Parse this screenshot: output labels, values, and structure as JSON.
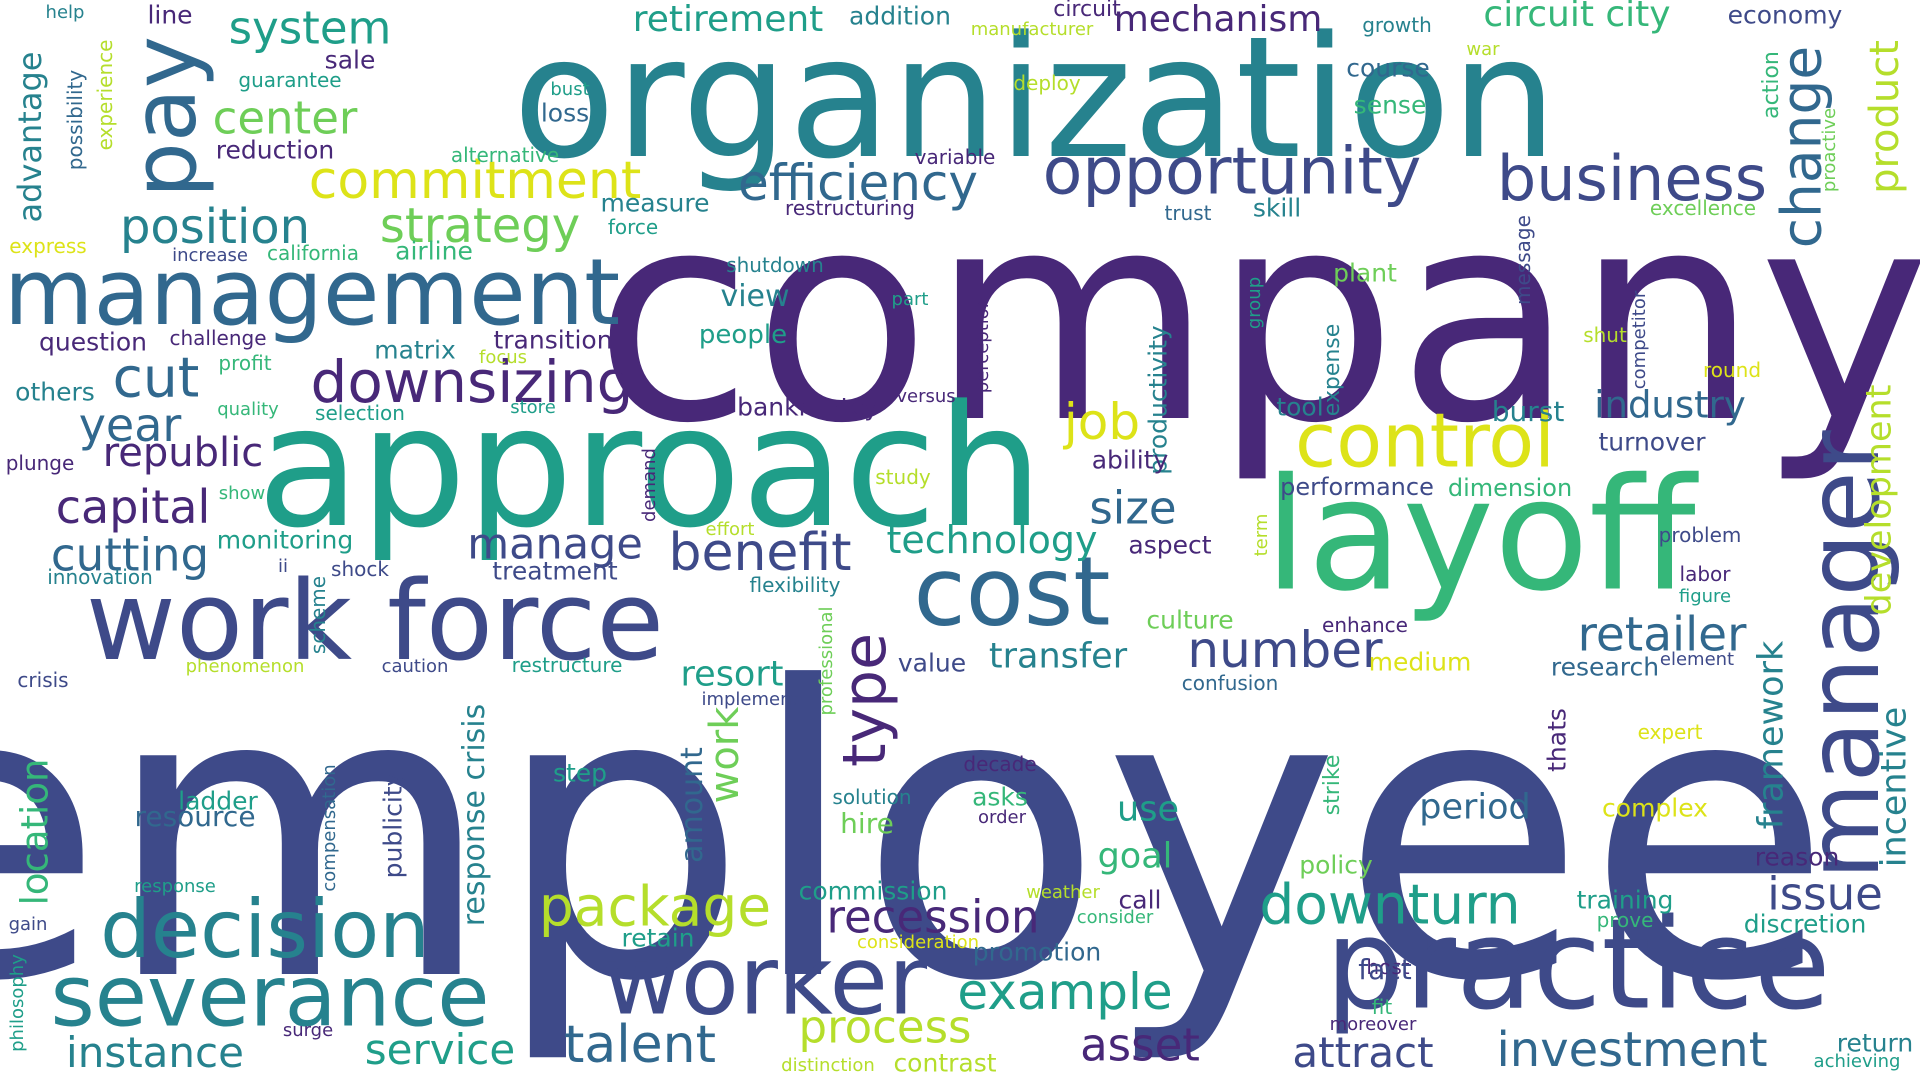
{
  "colors": {
    "dark_purple": "#482878",
    "indigo": "#3e4a89",
    "blue": "#31688e",
    "teal": "#26828e",
    "green_teal": "#1f9e89",
    "green": "#35b779",
    "light_green": "#6ece58",
    "yellow_green": "#b5de2b",
    "yellow": "#dde318"
  },
  "words": [
    "employee",
    "company",
    "organization",
    "approach",
    "layoff",
    "practice",
    "work force",
    "manager",
    "management",
    "cost",
    "pay",
    "worker",
    "severance",
    "decision",
    "control",
    "opportunity",
    "business",
    "efficiency",
    "downsizing",
    "commitment",
    "position",
    "strategy",
    "center",
    "system",
    "retirement",
    "mechanism",
    "circuit city",
    "change",
    "product",
    "cut",
    "year",
    "capital",
    "cutting",
    "republic",
    "job",
    "size",
    "benefit",
    "manage",
    "technology",
    "type",
    "number",
    "retailer",
    "transfer",
    "industry",
    "development",
    "downturn",
    "package",
    "recession",
    "process",
    "example",
    "talent",
    "asset",
    "attract",
    "investment",
    "instance",
    "service",
    "work",
    "amount",
    "resort",
    "issue",
    "incentive",
    "framework",
    "period",
    "goal",
    "use",
    "location",
    "view",
    "people",
    "plant",
    "productivity",
    "performance",
    "dimension",
    "skill",
    "sense",
    "course",
    "loss",
    "sale",
    "advantage",
    "line",
    "help",
    "economy",
    "growth",
    "circuit",
    "manufacturer",
    "addition",
    "guarantee",
    "bust",
    "deploy",
    "experience",
    "possibility",
    "action",
    "proactive",
    "war",
    "reduction",
    "alternative",
    "variable",
    "restructuring",
    "measure",
    "force",
    "trust",
    "excellence",
    "express",
    "increase",
    "california",
    "airline",
    "shutdown",
    "message",
    "part",
    "perception",
    "group",
    "competitor",
    "shut",
    "round",
    "question",
    "challenge",
    "transition",
    "matrix",
    "profit",
    "focus",
    "others",
    "quality",
    "selection",
    "store",
    "versus",
    "bankruptcy",
    "tool",
    "expense",
    "burst",
    "turnover",
    "plunge",
    "ability",
    "study",
    "demand",
    "show",
    "effort",
    "aspect",
    "term",
    "problem",
    "monitoring",
    "innovation",
    "ii",
    "shock",
    "treatment",
    "scheme",
    "flexibility",
    "professional",
    "culture",
    "enhance",
    "labor",
    "figure",
    "crisis",
    "phenomenon",
    "caution",
    "restructure",
    "value",
    "medium",
    "research",
    "element",
    "confusion",
    "implement",
    "response crisis",
    "publicity",
    "compensation",
    "resource",
    "ladder",
    "step",
    "solution",
    "hire",
    "asks",
    "order",
    "decade",
    "expert",
    "thats",
    "strike",
    "complex",
    "policy",
    "reason",
    "training",
    "commission",
    "response",
    "weather",
    "call",
    "consider",
    "prove",
    "discretion",
    "gain",
    "retain",
    "consideration",
    "promotion",
    "philosophy",
    "host",
    "fact",
    "fit",
    "moreover",
    "surge",
    "distinction",
    "contrast",
    "return",
    "achieving"
  ]
}
